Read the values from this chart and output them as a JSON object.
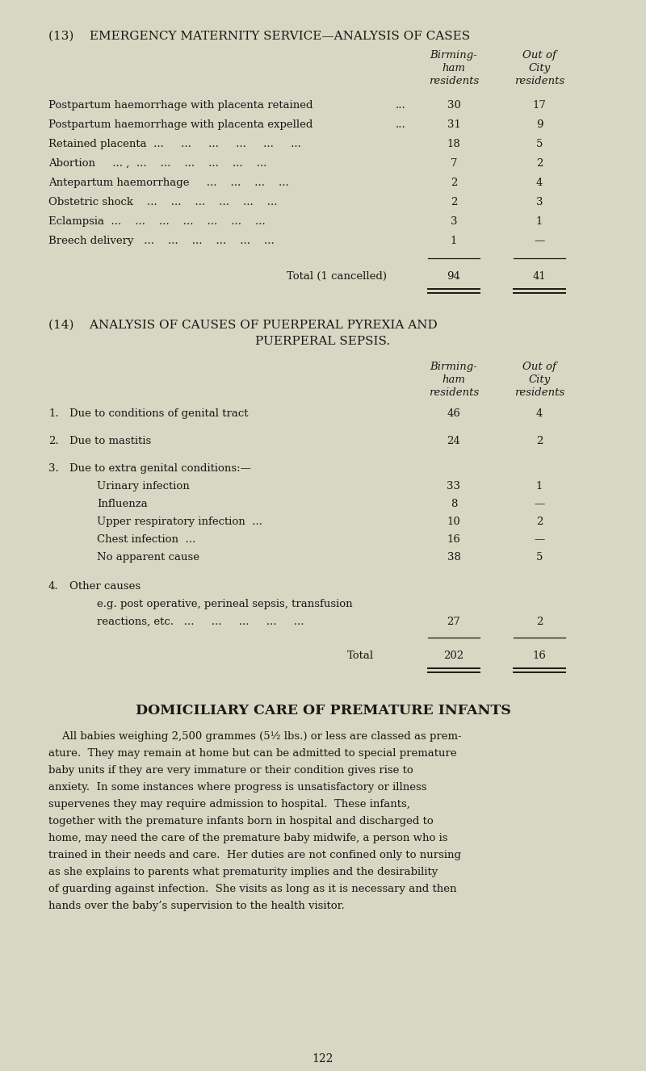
{
  "bg_color": "#d8d7c4",
  "text_color": "#1a1814",
  "page_number": "122",
  "section13": {
    "title": "(13)    EMERGENCY MATERNITY SERVICE—ANALYSIS OF CASES",
    "rows": [
      {
        "label": "Postpartum haemorrhage with placenta retained",
        "dots": "...",
        "val1": "30",
        "val2": "17"
      },
      {
        "label": "Postpartum haemorrhage with placenta expelled",
        "dots": "...",
        "val1": "31",
        "val2": "9"
      },
      {
        "label": "Retained placenta  ...     ...     ...     ...     ...     ...",
        "dots": "",
        "val1": "18",
        "val2": "5"
      },
      {
        "label": "Abortion     ... ,  ...    ...    ...    ...    ...    ...",
        "dots": "",
        "val1": "7",
        "val2": "2"
      },
      {
        "label": "Antepartum haemorrhage     ...    ...    ...    ...",
        "dots": "",
        "val1": "2",
        "val2": "4"
      },
      {
        "label": "Obstetric shock    ...    ...    ...    ...    ...    ...",
        "dots": "",
        "val1": "2",
        "val2": "3"
      },
      {
        "label": "Eclampsia  ...    ...    ...    ...    ...    ...    ...",
        "dots": "",
        "val1": "3",
        "val2": "1"
      },
      {
        "label": "Breech delivery   ...    ...    ...    ...    ...    ...",
        "dots": "",
        "val1": "1",
        "val2": "—"
      }
    ],
    "total_label": "Total (1 cancelled)",
    "total_val1": "94",
    "total_val2": "41"
  },
  "section14": {
    "title1": "(14)    ANALYSIS OF CAUSES OF PUERPERAL PYREXIA AND",
    "title2": "PUERPERAL SEPSIS.",
    "rows": [
      {
        "num": "1.",
        "label": "Due to conditions of genital tract",
        "dots": "...   ...",
        "val1": "46",
        "val2": "4",
        "indent": 0,
        "extra_before": 0
      },
      {
        "num": "2.",
        "label": "Due to mastitis",
        "dots": "...   ...   ...   ...   ...",
        "val1": "24",
        "val2": "2",
        "indent": 0,
        "extra_before": 12
      },
      {
        "num": "3.",
        "label": "Due to extra genital conditions:—",
        "dots": "",
        "val1": "",
        "val2": "",
        "indent": 0,
        "extra_before": 12
      },
      {
        "num": "",
        "label": "Urinary infection",
        "dots": "...   ...   ...   ...",
        "val1": "33",
        "val2": "1",
        "indent": 1,
        "extra_before": 0
      },
      {
        "num": "",
        "label": "Influenza",
        "dots": "...   ...   ...   ...   ...",
        "val1": "8",
        "val2": "—",
        "indent": 1,
        "extra_before": 0
      },
      {
        "num": "",
        "label": "Upper respiratory infection  ...",
        "dots": "...   ...",
        "val1": "10",
        "val2": "2",
        "indent": 1,
        "extra_before": 0
      },
      {
        "num": "",
        "label": "Chest infection  ...",
        "dots": "...   ...   ...   ...",
        "val1": "16",
        "val2": "—",
        "indent": 1,
        "extra_before": 0
      },
      {
        "num": "",
        "label": "No apparent cause",
        "dots": "...   ...   ...   ...",
        "val1": "38",
        "val2": "5",
        "indent": 1,
        "extra_before": 0
      },
      {
        "num": "4.",
        "label": "Other causes",
        "dots": "",
        "val1": "",
        "val2": "",
        "indent": 0,
        "extra_before": 14
      },
      {
        "num": "",
        "label": "e.g. post operative, perineal sepsis, transfusion",
        "dots": "",
        "val1": "",
        "val2": "",
        "indent": 1,
        "extra_before": 0
      },
      {
        "num": "",
        "label": "reactions, etc.   ...     ...     ...     ...     ...",
        "dots": "",
        "val1": "27",
        "val2": "2",
        "indent": 1,
        "extra_before": 0
      }
    ],
    "total_label": "Total",
    "total_val1": "202",
    "total_val2": "16"
  },
  "domiciliary": {
    "title": "DOMICILIARY CARE OF PREMATURE INFANTS",
    "para_lines": [
      "    All babies weighing 2,500 grammes (5½ lbs.) or less are classed as prem-",
      "ature.  They may remain at home but can be admitted to special premature",
      "baby units if they are very immature or their condition gives rise to",
      "anxiety.  In some instances where progress is unsatisfactory or illness",
      "supervenes they may require admission to hospital.  These infants,",
      "together with the premature infants born in hospital and discharged to",
      "home, may need the care of the premature baby midwife, a person who is",
      "trained in their needs and care.  Her duties are not confined only to nursing",
      "as she explains to parents what prematurity implies and the desirability",
      "of guarding against infection.  She visits as long as it is necessary and then",
      "hands over the baby’s supervision to the health visitor."
    ]
  }
}
